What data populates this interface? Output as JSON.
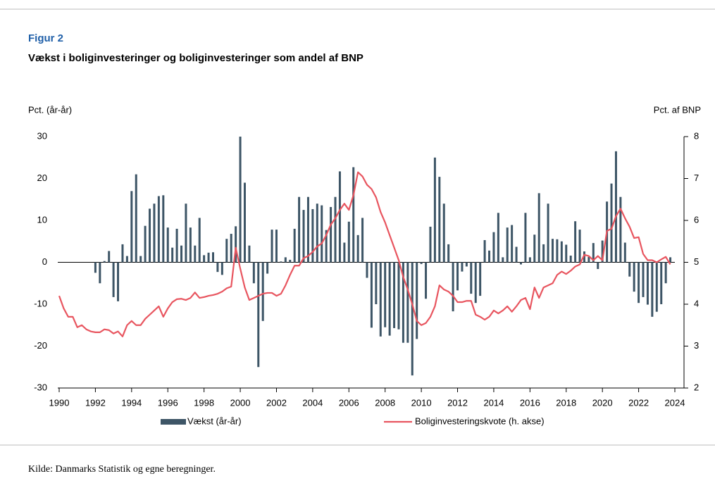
{
  "chart_data": {
    "type": "bar",
    "figure_label": "Figur 2",
    "title": "Vækst i boliginvesteringer og boliginvesteringer som andel af BNP",
    "y_axis_label": "Pct. (år-år)",
    "y2_axis_label": "Pct. af BNP",
    "source": "Kilde:  Danmarks Statistik og egne beregninger.",
    "xlim": [
      1990,
      2024
    ],
    "xticks": [
      1990,
      1992,
      1994,
      1996,
      1998,
      2000,
      2002,
      2004,
      2006,
      2008,
      2010,
      2012,
      2014,
      2016,
      2018,
      2020,
      2022,
      2024
    ],
    "ylim": [
      -30,
      30
    ],
    "yticks": [
      -30,
      -20,
      -10,
      0,
      10,
      20,
      30
    ],
    "y2lim": [
      2,
      8
    ],
    "y2ticks": [
      2,
      3,
      4,
      5,
      6,
      7,
      8
    ],
    "x": [
      1990,
      1990.25,
      1990.5,
      1990.75,
      1991,
      1991.25,
      1991.5,
      1991.75,
      1992,
      1992.25,
      1992.5,
      1992.75,
      1993,
      1993.25,
      1993.5,
      1993.75,
      1994,
      1994.25,
      1994.5,
      1994.75,
      1995,
      1995.25,
      1995.5,
      1995.75,
      1996,
      1996.25,
      1996.5,
      1996.75,
      1997,
      1997.25,
      1997.5,
      1997.75,
      1998,
      1998.25,
      1998.5,
      1998.75,
      1999,
      1999.25,
      1999.5,
      1999.75,
      2000,
      2000.25,
      2000.5,
      2000.75,
      2001,
      2001.25,
      2001.5,
      2001.75,
      2002,
      2002.25,
      2002.5,
      2002.75,
      2003,
      2003.25,
      2003.5,
      2003.75,
      2004,
      2004.25,
      2004.5,
      2004.75,
      2005,
      2005.25,
      2005.5,
      2005.75,
      2006,
      2006.25,
      2006.5,
      2006.75,
      2007,
      2007.25,
      2007.5,
      2007.75,
      2008,
      2008.25,
      2008.5,
      2008.75,
      2009,
      2009.25,
      2009.5,
      2009.75,
      2010,
      2010.25,
      2010.5,
      2010.75,
      2011,
      2011.25,
      2011.5,
      2011.75,
      2012,
      2012.25,
      2012.5,
      2012.75,
      2013,
      2013.25,
      2013.5,
      2013.75,
      2014,
      2014.25,
      2014.5,
      2014.75,
      2015,
      2015.25,
      2015.5,
      2015.75,
      2016,
      2016.25,
      2016.5,
      2016.75,
      2017,
      2017.25,
      2017.5,
      2017.75,
      2018,
      2018.25,
      2018.5,
      2018.75,
      2019,
      2019.25,
      2019.5,
      2019.75,
      2020,
      2020.25,
      2020.5,
      2020.75,
      2021,
      2021.25,
      2021.5,
      2021.75,
      2022,
      2022.25,
      2022.5,
      2022.75,
      2023,
      2023.25,
      2023.5,
      2023.75
    ],
    "series": [
      {
        "name": "Vækst (år-år)",
        "type": "bar",
        "color": "#3d5566",
        "values": [
          null,
          null,
          null,
          null,
          null,
          null,
          null,
          null,
          -2.5,
          -5,
          0.3,
          2.7,
          -8.3,
          -9.3,
          4.3,
          1.5,
          17,
          21,
          1.5,
          8.7,
          12.8,
          14,
          15.8,
          16,
          8.3,
          3.5,
          8,
          4,
          14,
          8.3,
          4,
          10.6,
          1.7,
          2.3,
          2.4,
          -2.3,
          -3,
          5.6,
          6.8,
          8.6,
          30,
          19,
          4,
          -5,
          -25,
          -14,
          -2.7,
          7.8,
          7.8,
          0.2,
          1.2,
          0.6,
          8,
          15.6,
          12.5,
          15.6,
          12.7,
          14,
          13.6,
          7.7,
          13.2,
          15.6,
          21.7,
          4.7,
          9.7,
          22.7,
          6.5,
          10.6,
          -3.7,
          -15.6,
          -10,
          -17.7,
          -15.5,
          -17.5,
          -15.7,
          -16,
          -19.2,
          -19.2,
          -27,
          -18.3,
          -0.4,
          -8.7,
          8.5,
          25,
          20.4,
          14,
          4.3,
          -11.7,
          -6.7,
          -2.2,
          -1,
          -7.5,
          -9.7,
          -8,
          5.3,
          2.8,
          7.2,
          11.8,
          1.2,
          8.3,
          8.9,
          3.7,
          -0.5,
          11.8,
          1.2,
          6.6,
          16.5,
          4.3,
          14,
          5.6,
          5.5,
          5,
          4.2,
          1.6,
          9.8,
          7.8,
          2.6,
          1.3,
          4.6,
          -1.6,
          5.2,
          14.5,
          18.8,
          26.5,
          15.6,
          4.7,
          -3.4,
          -7,
          -9.7,
          -8.3,
          -10.1,
          -13,
          -11.8,
          -10,
          -5,
          1.2
        ]
      },
      {
        "name": "Boliginvesteringskvote (h. akse)",
        "type": "line",
        "axis": "y2",
        "color": "#e8555f",
        "values": [
          4.2,
          3.9,
          3.7,
          3.7,
          3.45,
          3.5,
          3.4,
          3.35,
          3.33,
          3.33,
          3.4,
          3.38,
          3.3,
          3.35,
          3.23,
          3.5,
          3.6,
          3.5,
          3.5,
          3.65,
          3.75,
          3.85,
          3.95,
          3.7,
          3.9,
          4.05,
          4.12,
          4.13,
          4.1,
          4.15,
          4.28,
          4.15,
          4.17,
          4.2,
          4.22,
          4.25,
          4.3,
          4.38,
          4.42,
          5.35,
          4.85,
          4.4,
          4.1,
          4.15,
          4.2,
          4.25,
          4.27,
          4.27,
          4.2,
          4.25,
          4.45,
          4.7,
          4.92,
          4.92,
          5.1,
          5.15,
          5.25,
          5.38,
          5.45,
          5.65,
          5.9,
          6.05,
          6.25,
          6.4,
          6.25,
          6.6,
          7.15,
          7.05,
          6.85,
          6.75,
          6.55,
          6.2,
          5.95,
          5.65,
          5.35,
          5.05,
          4.65,
          4.35,
          4,
          3.6,
          3.5,
          3.55,
          3.7,
          3.95,
          4.45,
          4.35,
          4.3,
          4.2,
          4.05,
          4.05,
          4.08,
          4.08,
          3.75,
          3.7,
          3.63,
          3.7,
          3.85,
          3.78,
          3.85,
          3.95,
          3.82,
          3.95,
          4.1,
          4.15,
          3.88,
          4.4,
          4.15,
          4.4,
          4.45,
          4.5,
          4.7,
          4.78,
          4.72,
          4.8,
          4.9,
          4.95,
          5.18,
          5.15,
          5.05,
          5.15,
          5.05,
          5.75,
          5.8,
          6.1,
          6.28,
          6.05,
          5.85,
          5.58,
          5.6,
          5.2,
          5.05,
          5.05,
          5,
          5.07,
          5.13,
          4.95
        ]
      }
    ]
  }
}
